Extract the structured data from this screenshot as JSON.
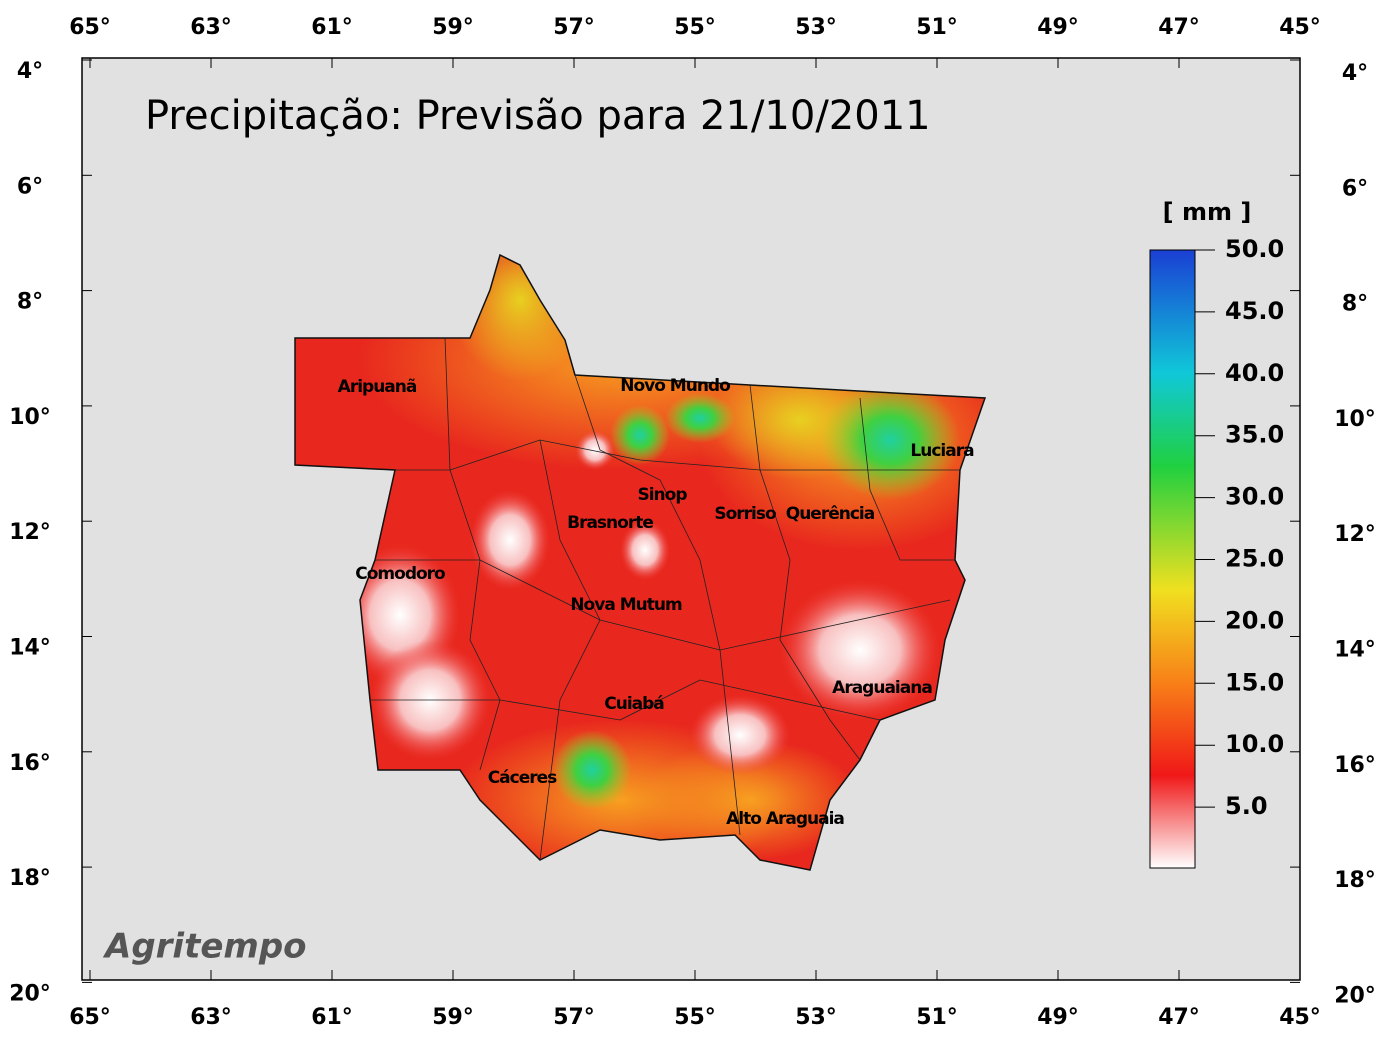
{
  "title": "Precipitação: Previsão para 21/10/2011",
  "lon_labels": [
    "65°",
    "63°",
    "61°",
    "59°",
    "57°",
    "55°",
    "53°",
    "51°",
    "49°",
    "47°",
    "45°"
  ],
  "lat_labels": [
    "4°",
    "6°",
    "8°",
    "10°",
    "12°",
    "14°",
    "16°",
    "18°",
    "20°"
  ],
  "colorbar": {
    "unit": "[ mm ]",
    "labels": [
      "50.0",
      "45.0",
      "40.0",
      "35.0",
      "30.0",
      "25.0",
      "20.0",
      "15.0",
      "10.0",
      "5.0"
    ]
  },
  "cities": [
    {
      "name": "Aripuanã"
    },
    {
      "name": "Novo Mundo"
    },
    {
      "name": "Luciara"
    },
    {
      "name": "Sinop"
    },
    {
      "name": "Brasnorte"
    },
    {
      "name": "Sorriso"
    },
    {
      "name": "Querência"
    },
    {
      "name": "Comodoro"
    },
    {
      "name": "Nova Mutum"
    },
    {
      "name": "Araguaiana"
    },
    {
      "name": "Cuiabá"
    },
    {
      "name": "Cáceres"
    },
    {
      "name": "Alto Araguaia"
    }
  ],
  "credit": "Agritempo"
}
